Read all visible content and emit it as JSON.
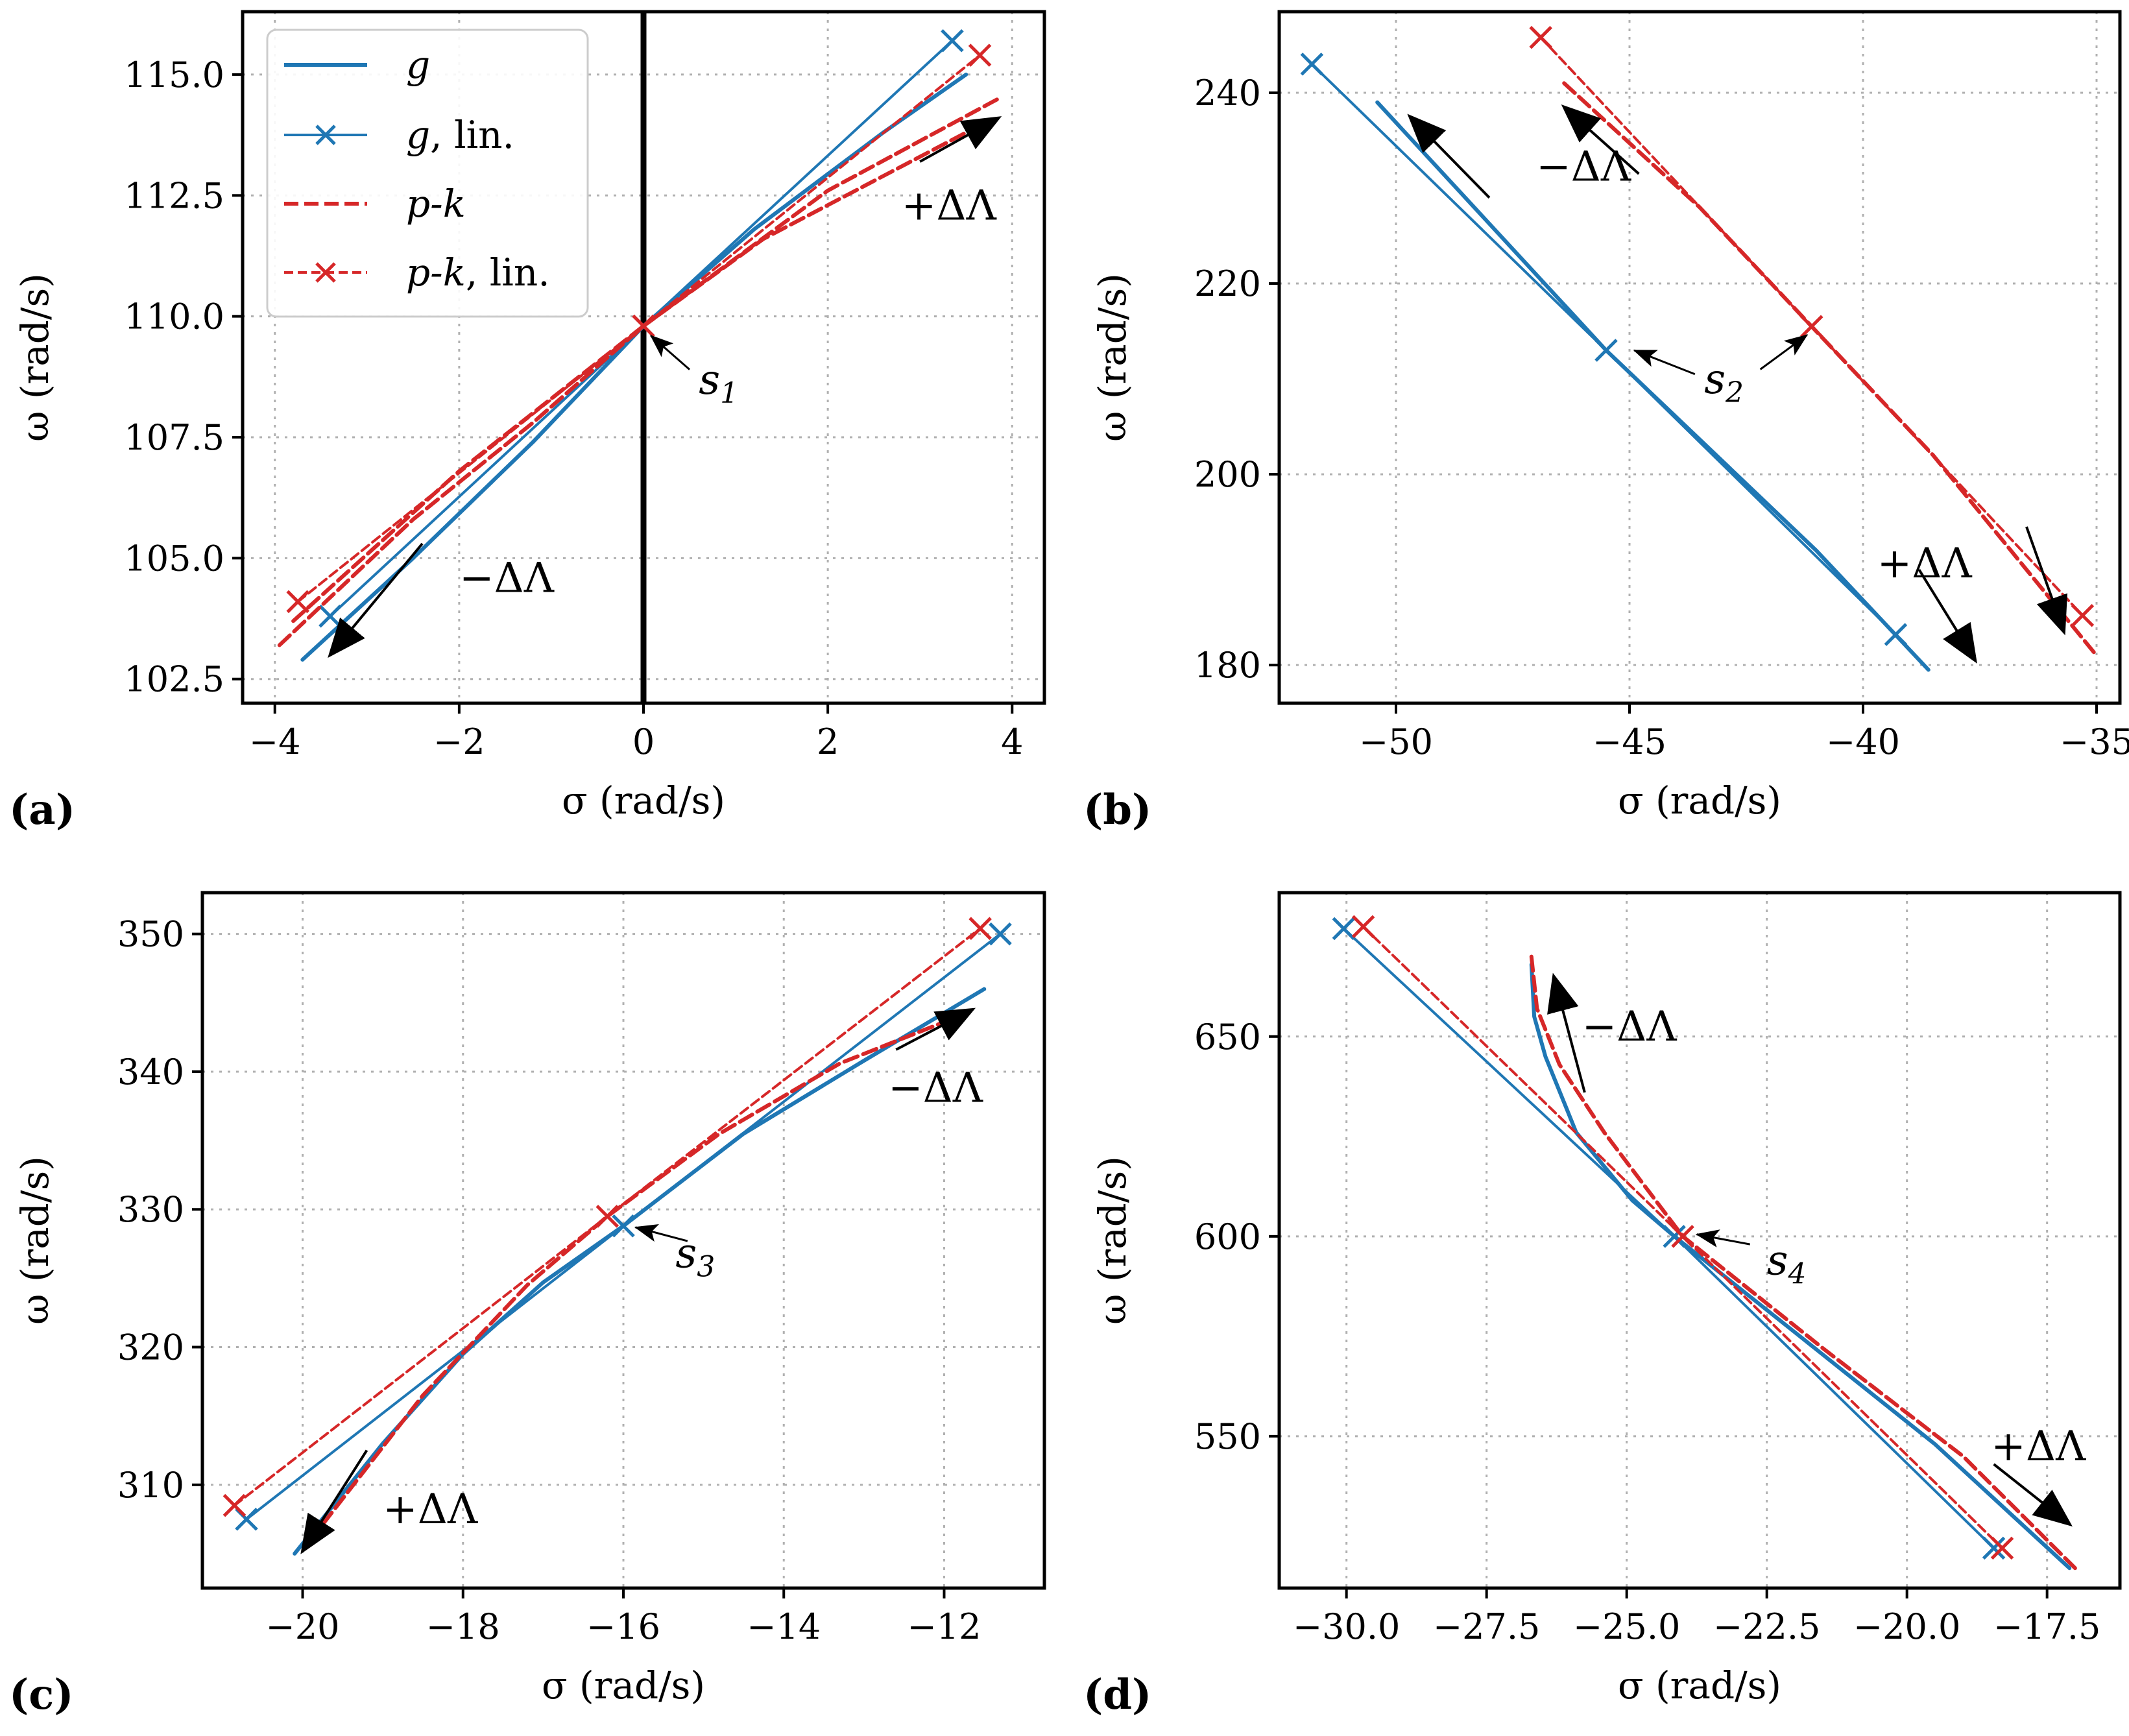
{
  "legend": {
    "entries": [
      {
        "label": "g",
        "suffix": ""
      },
      {
        "label": "g",
        "suffix": ", lin."
      },
      {
        "label": "p-k",
        "suffix": ""
      },
      {
        "label": "p-k",
        "suffix": ", lin."
      }
    ]
  },
  "colors": {
    "g": "#1f77b4",
    "pk": "#d62728",
    "grid": "#b0b0b0"
  },
  "chart_data": [
    {
      "panel": "(a)",
      "type": "line",
      "xlabel": "σ (rad/s)",
      "ylabel": "ω (rad/s)",
      "xlim": [
        -4.35,
        4.35
      ],
      "ylim": [
        102.0,
        116.3
      ],
      "xticks": [
        -4,
        -2,
        0,
        2,
        4
      ],
      "xtick_labels": [
        "−4",
        "−2",
        "0",
        "2",
        "4"
      ],
      "yticks": [
        102.5,
        105.0,
        107.5,
        110.0,
        112.5,
        115.0
      ],
      "ytick_labels": [
        "102.5",
        "105.0",
        "107.5",
        "110.0",
        "112.5",
        "115.0"
      ],
      "vline_x": 0,
      "series": [
        {
          "name": "g",
          "x": [
            -3.7,
            -2.5,
            -1.2,
            0.0,
            1.2,
            2.6,
            3.5
          ],
          "y": [
            102.9,
            105.0,
            107.4,
            109.8,
            111.8,
            113.8,
            115.0
          ]
        },
        {
          "name": "g, lin.",
          "x": [
            -3.4,
            0.0,
            3.35
          ],
          "y": [
            103.8,
            109.8,
            115.7
          ],
          "markers": [
            0,
            2
          ]
        },
        {
          "name": "p-k",
          "x": [
            -3.95,
            -2.5,
            -1.2,
            0.0,
            1.3,
            2.7,
            3.6
          ],
          "y": [
            103.2,
            105.8,
            107.8,
            109.8,
            111.6,
            113.0,
            113.9
          ]
        },
        {
          "name": "p-k, lin.",
          "x": [
            -3.75,
            0.0,
            3.65
          ],
          "y": [
            104.1,
            109.8,
            115.4
          ],
          "markers": [
            0,
            1,
            2
          ]
        },
        {
          "name": "p-k (2)",
          "x": [
            -3.8,
            -2.0,
            0.0,
            2.0,
            3.85
          ],
          "y": [
            103.7,
            106.8,
            109.8,
            112.6,
            114.5
          ]
        }
      ],
      "arrows": [
        {
          "from": [
            3.0,
            113.2
          ],
          "to": [
            3.85,
            114.1
          ]
        },
        {
          "from": [
            -2.4,
            105.3
          ],
          "to": [
            -3.4,
            103.0
          ]
        }
      ],
      "small_arrows": [
        {
          "from": [
            0.5,
            108.9
          ],
          "to": [
            0.08,
            109.6
          ]
        }
      ],
      "annotations": [
        {
          "text": "+ΔΛ",
          "x": 2.8,
          "y": 112.0
        },
        {
          "text": "−ΔΛ",
          "x": -2.0,
          "y": 104.3
        }
      ],
      "point_labels": [
        {
          "text": "s",
          "sub": "1",
          "x": 0.6,
          "y": 108.4
        }
      ]
    },
    {
      "panel": "(b)",
      "type": "line",
      "xlabel": "σ (rad/s)",
      "ylabel": "ω (rad/s)",
      "xlim": [
        -52.5,
        -34.5
      ],
      "ylim": [
        176.0,
        248.5
      ],
      "xticks": [
        -50,
        -45,
        -40,
        -35
      ],
      "xtick_labels": [
        "−50",
        "−45",
        "−40",
        "−35"
      ],
      "yticks": [
        180,
        200,
        220,
        240
      ],
      "ytick_labels": [
        "180",
        "200",
        "220",
        "240"
      ],
      "series": [
        {
          "name": "g",
          "x": [
            -50.4,
            -45.5,
            -41.0,
            -38.6
          ],
          "y": [
            239.0,
            213.0,
            192.0,
            179.5
          ]
        },
        {
          "name": "g, lin.",
          "x": [
            -51.8,
            -45.5,
            -39.3
          ],
          "y": [
            243.0,
            213.0,
            183.2
          ],
          "markers": [
            0,
            1,
            2
          ]
        },
        {
          "name": "p-k",
          "x": [
            -46.4,
            -43.5,
            -41.1,
            -38.5,
            -35.0
          ],
          "y": [
            241.0,
            228.0,
            215.5,
            202.0,
            181.0
          ]
        },
        {
          "name": "p-k, lin.",
          "x": [
            -46.9,
            -41.1,
            -35.3
          ],
          "y": [
            245.8,
            215.5,
            185.2
          ],
          "markers": [
            0,
            1,
            2
          ]
        }
      ],
      "arrows": [
        {
          "from": [
            -48.0,
            229.0
          ],
          "to": [
            -49.7,
            237.5
          ]
        },
        {
          "from": [
            -44.8,
            231.5
          ],
          "to": [
            -46.4,
            238.5
          ]
        },
        {
          "from": [
            -38.8,
            190.0
          ],
          "to": [
            -37.6,
            180.5
          ]
        },
        {
          "from": [
            -36.5,
            194.5
          ],
          "to": [
            -35.7,
            183.5
          ]
        }
      ],
      "small_arrows": [
        {
          "from": [
            -43.6,
            210.5
          ],
          "to": [
            -44.9,
            213.0
          ]
        },
        {
          "from": [
            -42.2,
            211.0
          ],
          "to": [
            -41.2,
            214.6
          ]
        }
      ],
      "annotations": [
        {
          "text": "−ΔΛ",
          "x": -47.0,
          "y": 230.8
        },
        {
          "text": "+ΔΛ",
          "x": -39.7,
          "y": 189.2
        }
      ],
      "point_labels": [
        {
          "text": "s",
          "sub": "2",
          "x": -43.4,
          "y": 208.5
        }
      ]
    },
    {
      "panel": "(c)",
      "type": "line",
      "xlabel": "σ (rad/s)",
      "ylabel": "ω (rad/s)",
      "xlim": [
        -21.25,
        -10.75
      ],
      "ylim": [
        302.5,
        353.0
      ],
      "xticks": [
        -20,
        -18,
        -16,
        -14,
        -12
      ],
      "xtick_labels": [
        "−20",
        "−18",
        "−16",
        "−14",
        "−12"
      ],
      "yticks": [
        310,
        320,
        330,
        340,
        350
      ],
      "ytick_labels": [
        "310",
        "320",
        "330",
        "340",
        "350"
      ],
      "series": [
        {
          "name": "g",
          "x": [
            -20.1,
            -19.0,
            -18.0,
            -17.0,
            -16.0,
            -14.5,
            -13.0,
            -11.5
          ],
          "y": [
            305.0,
            313.0,
            319.5,
            324.7,
            328.8,
            335.5,
            340.8,
            346.0
          ]
        },
        {
          "name": "g, lin.",
          "x": [
            -20.7,
            -16.0,
            -11.3
          ],
          "y": [
            307.5,
            328.8,
            350.0
          ],
          "markers": [
            0,
            1,
            2
          ]
        },
        {
          "name": "p-k",
          "x": [
            -19.9,
            -18.5,
            -17.2,
            -16.2,
            -14.8,
            -13.3,
            -11.7
          ],
          "y": [
            306.0,
            316.5,
            324.5,
            329.5,
            335.5,
            340.6,
            344.3
          ]
        },
        {
          "name": "p-k, lin.",
          "x": [
            -20.85,
            -16.2,
            -11.55
          ],
          "y": [
            308.5,
            329.5,
            350.4
          ],
          "markers": [
            0,
            1,
            2
          ]
        }
      ],
      "arrows": [
        {
          "from": [
            -12.6,
            341.6
          ],
          "to": [
            -11.65,
            344.5
          ]
        },
        {
          "from": [
            -19.2,
            312.5
          ],
          "to": [
            -20.0,
            305.2
          ]
        }
      ],
      "small_arrows": [
        {
          "from": [
            -15.2,
            327.7
          ],
          "to": [
            -15.85,
            328.7
          ]
        }
      ],
      "annotations": [
        {
          "text": "−ΔΛ",
          "x": -12.7,
          "y": 337.8
        },
        {
          "text": "+ΔΛ",
          "x": -19.0,
          "y": 307.2
        }
      ],
      "point_labels": [
        {
          "text": "s",
          "sub": "3",
          "x": -15.35,
          "y": 325.8
        }
      ]
    },
    {
      "panel": "(d)",
      "type": "line",
      "xlabel": "σ (rad/s)",
      "ylabel": "ω (rad/s)",
      "xlim": [
        -31.2,
        -16.2
      ],
      "ylim": [
        512.0,
        686.0
      ],
      "xticks": [
        -30.0,
        -27.5,
        -25.0,
        -22.5,
        -20.0,
        -17.5
      ],
      "xtick_labels": [
        "−30.0",
        "−27.5",
        "−25.0",
        "−22.5",
        "−20.0",
        "−17.5"
      ],
      "yticks": [
        550,
        600,
        650
      ],
      "ytick_labels": [
        "550",
        "600",
        "650"
      ],
      "series": [
        {
          "name": "g",
          "x": [
            -26.7,
            -26.65,
            -26.45,
            -25.9,
            -24.9,
            -24.15,
            -22.0,
            -19.5,
            -17.1
          ],
          "y": [
            668.0,
            655.0,
            645.0,
            626.0,
            609.0,
            600.0,
            576.0,
            548.0,
            517.0
          ]
        },
        {
          "name": "g, lin.",
          "x": [
            -30.05,
            -24.15,
            -18.45
          ],
          "y": [
            677.0,
            600.0,
            522.0
          ],
          "markers": [
            0,
            1,
            2
          ]
        },
        {
          "name": "p-k",
          "x": [
            -26.7,
            -26.6,
            -26.2,
            -25.4,
            -24.0,
            -21.5,
            -19.0,
            -17.0
          ],
          "y": [
            670.0,
            657.0,
            643.0,
            626.0,
            600.0,
            572.0,
            545.0,
            517.0
          ]
        },
        {
          "name": "p-k, lin.",
          "x": [
            -29.7,
            -24.0,
            -18.3
          ],
          "y": [
            677.5,
            600.0,
            522.0
          ],
          "markers": [
            0,
            1,
            2
          ]
        }
      ],
      "arrows": [
        {
          "from": [
            -25.75,
            636.0
          ],
          "to": [
            -26.3,
            665.0
          ]
        },
        {
          "from": [
            -18.45,
            543.0
          ],
          "to": [
            -17.1,
            528.0
          ]
        }
      ],
      "small_arrows": [
        {
          "from": [
            -22.8,
            598.0
          ],
          "to": [
            -23.75,
            600.5
          ]
        }
      ],
      "annotations": [
        {
          "text": "−ΔΛ",
          "x": -25.8,
          "y": 649.0
        },
        {
          "text": "+ΔΛ",
          "x": -18.5,
          "y": 544.0
        }
      ],
      "point_labels": [
        {
          "text": "s",
          "sub": "4",
          "x": -22.5,
          "y": 590.5
        }
      ]
    }
  ]
}
